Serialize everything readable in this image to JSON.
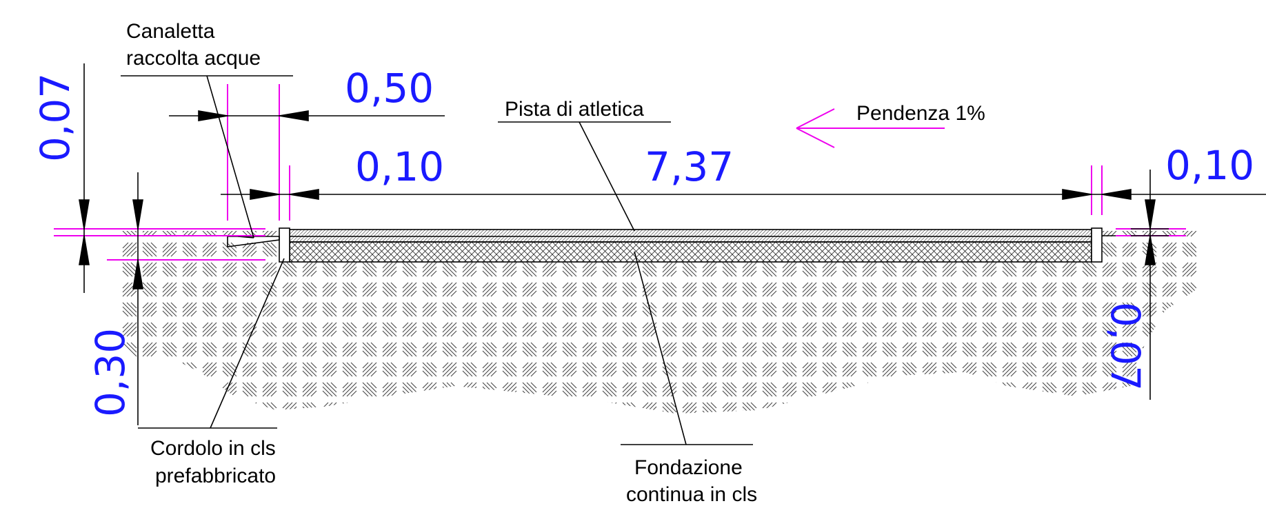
{
  "colors": {
    "dimension_text": "#1a1aff",
    "extension_lines": "#ee00ee",
    "linework": "#000000"
  },
  "labels": {
    "canaletta_line1": "Canaletta",
    "canaletta_line2": "raccolta acque",
    "pista": "Pista di atletica",
    "pendenza": "Pendenza 1%",
    "cordolo_line1": "Cordolo in cls",
    "cordolo_line2": "prefabbricato",
    "fondazione_line1": "Fondazione",
    "fondazione_line2": "continua in cls"
  },
  "dimensions": {
    "left_vertical_top": "0,07",
    "left_vertical_bottom": "0,30",
    "canaletta_width": "0,50",
    "cordolo_left": "0,10",
    "track_width": "7,37",
    "cordolo_right": "0,10",
    "right_vertical": "0,07"
  }
}
